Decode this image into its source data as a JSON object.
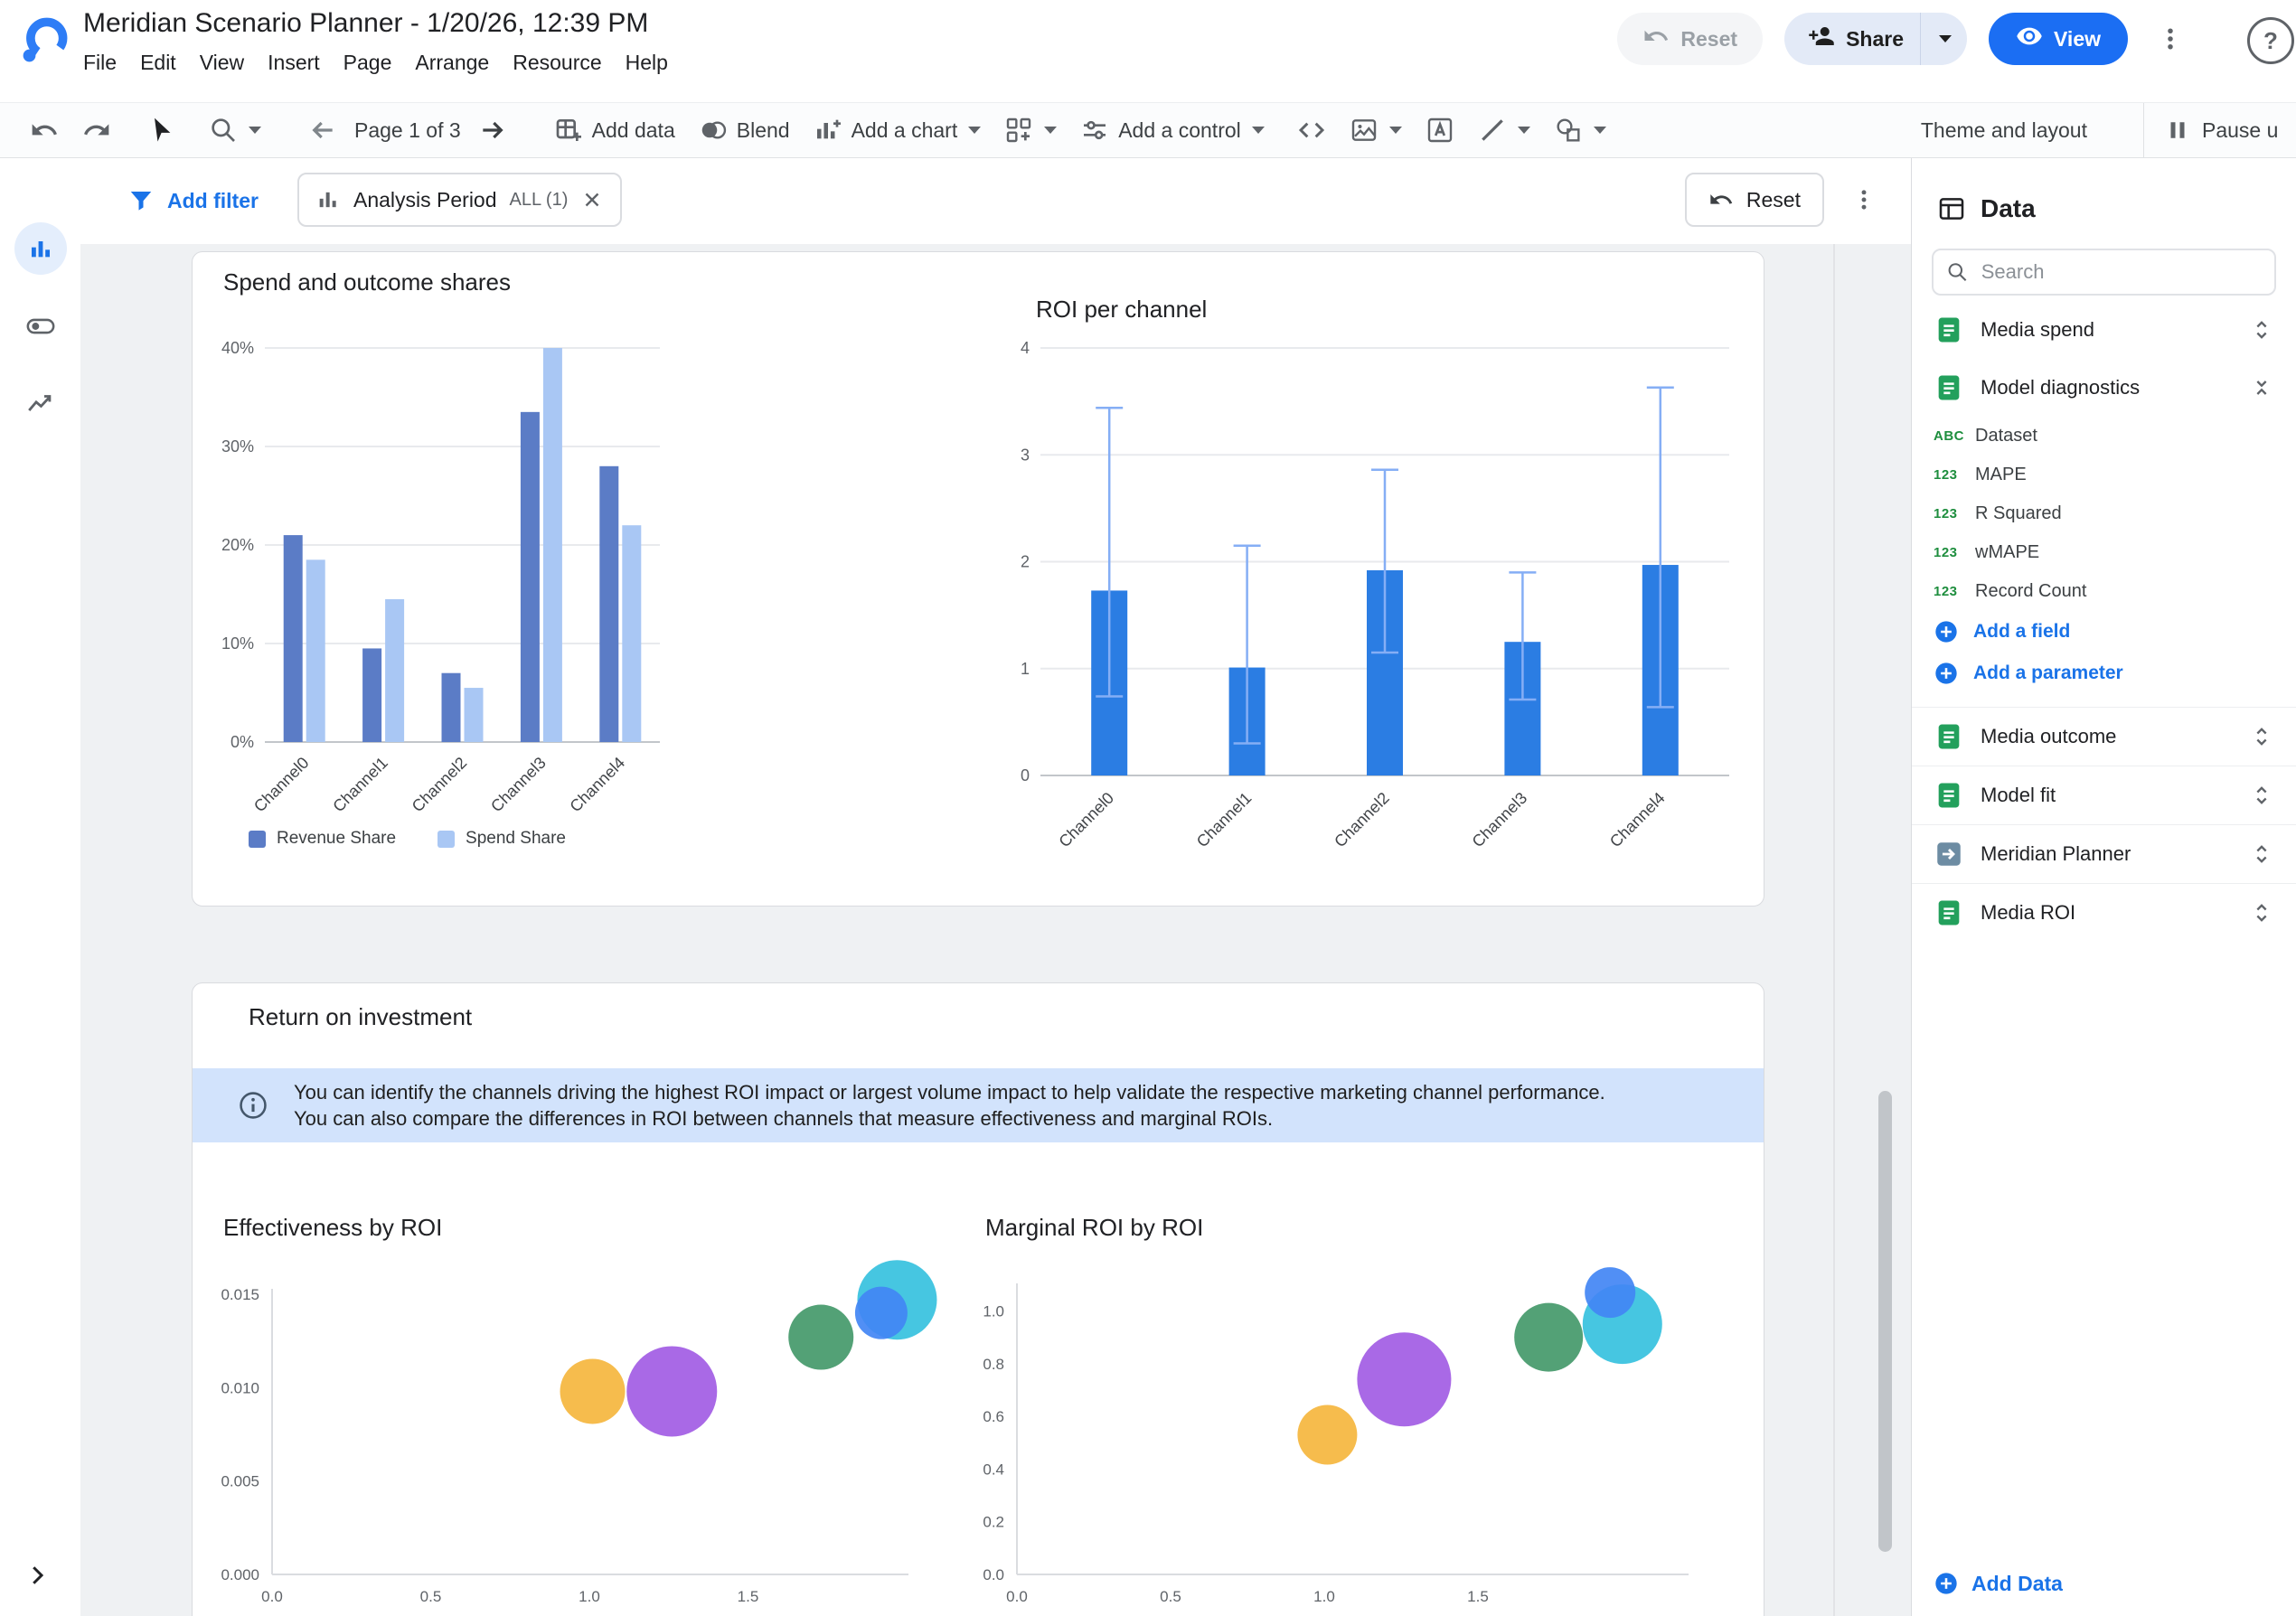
{
  "header": {
    "title": "Meridian Scenario Planner - 1/20/26, 12:39 PM",
    "menus": [
      "File",
      "Edit",
      "View",
      "Insert",
      "Page",
      "Arrange",
      "Resource",
      "Help"
    ],
    "reset_label": "Reset",
    "share_label": "Share",
    "view_label": "View"
  },
  "toolbar": {
    "page_label": "Page 1 of 3",
    "add_data_label": "Add data",
    "blend_label": "Blend",
    "add_chart_label": "Add a chart",
    "add_control_label": "Add a control",
    "theme_layout_label": "Theme and layout",
    "pause_label": "Pause u"
  },
  "filter_bar": {
    "add_filter_label": "Add filter",
    "chip_title": "Analysis Period",
    "chip_value": "ALL (1)",
    "reset_label": "Reset"
  },
  "report": {
    "section_title": "Return on investment",
    "info_banner": "You can identify the channels driving the highest ROI impact or largest volume impact to help validate the respective marketing channel performance. You can also compare the differences in ROI between channels that measure effectiveness and marginal ROIs."
  },
  "data_panel": {
    "title": "Data",
    "search_placeholder": "Search",
    "sources": [
      {
        "name": "Media spend",
        "icon": "sheet"
      },
      {
        "name": "Model diagnostics",
        "icon": "sheet"
      },
      {
        "name": "Media outcome",
        "icon": "sheet"
      },
      {
        "name": "Model fit",
        "icon": "sheet"
      },
      {
        "name": "Meridian Planner",
        "icon": "connector"
      },
      {
        "name": "Media ROI",
        "icon": "sheet"
      }
    ],
    "fields": [
      {
        "badge": "ABC",
        "name": "Dataset"
      },
      {
        "badge": "123",
        "name": "MAPE"
      },
      {
        "badge": "123",
        "name": "R Squared"
      },
      {
        "badge": "123",
        "name": "wMAPE"
      },
      {
        "badge": "123",
        "name": "Record Count"
      }
    ],
    "add_field_label": "Add a field",
    "add_parameter_label": "Add a parameter",
    "add_data_label": "Add Data"
  },
  "colors": {
    "accent": "#1a73e8",
    "banner_bg": "#d2e3fc",
    "canvas_bg": "#eff1f3"
  },
  "chart_data": [
    {
      "type": "bar",
      "title": "Spend and outcome shares",
      "categories": [
        "Channel0",
        "Channel1",
        "Channel2",
        "Channel3",
        "Channel4"
      ],
      "series": [
        {
          "name": "Revenue Share",
          "color": "#5b7cc6",
          "values": [
            21,
            9.5,
            7,
            33.5,
            28
          ]
        },
        {
          "name": "Spend Share",
          "color": "#a9c7f4",
          "values": [
            18.5,
            14.5,
            5.5,
            40,
            22
          ]
        }
      ],
      "ylim": [
        0,
        40
      ],
      "yticks": [
        0,
        10,
        20,
        30,
        40
      ],
      "ytick_labels": [
        "0%",
        "10%",
        "20%",
        "30%",
        "40%"
      ],
      "grid": true,
      "legend_position": "bottom"
    },
    {
      "type": "bar",
      "title": "ROI per channel",
      "categories": [
        "Channel0",
        "Channel1",
        "Channel2",
        "Channel3",
        "Channel4"
      ],
      "values": [
        1.73,
        1.01,
        1.92,
        1.25,
        1.97
      ],
      "error_low": [
        0.74,
        0.3,
        1.15,
        0.71,
        0.64
      ],
      "error_high": [
        3.44,
        2.15,
        2.86,
        1.9,
        3.63
      ],
      "bar_color": "#2b7de3",
      "error_color": "#85aef5",
      "ylim": [
        0,
        4
      ],
      "yticks": [
        0,
        1,
        2,
        3,
        4
      ],
      "ytick_labels": [
        "0",
        "1",
        "2",
        "3",
        "4"
      ],
      "grid": true
    },
    {
      "type": "scatter",
      "title": "Effectiveness by ROI",
      "xlim": [
        0,
        2.05
      ],
      "ylim": [
        0,
        0.0155
      ],
      "xticks": [
        0,
        0.5,
        1.0,
        1.5
      ],
      "xtick_labels": [
        "0.0",
        "0.5",
        "1.0",
        "1.5"
      ],
      "yticks": [
        0,
        0.005,
        0.01,
        0.015
      ],
      "ytick_labels": [
        "0.000",
        "0.005",
        "0.010",
        "0.015"
      ],
      "points": [
        {
          "x": 1.01,
          "y": 0.0098,
          "r": 36,
          "color": "#f5b63e"
        },
        {
          "x": 1.26,
          "y": 0.0098,
          "r": 50,
          "color": "#a25ce4"
        },
        {
          "x": 1.73,
          "y": 0.0127,
          "r": 36,
          "color": "#44996a"
        },
        {
          "x": 1.97,
          "y": 0.0147,
          "r": 44,
          "color": "#36c1de"
        },
        {
          "x": 1.92,
          "y": 0.014,
          "r": 29,
          "color": "#4285f4"
        }
      ]
    },
    {
      "type": "scatter",
      "title": "Marginal ROI by ROI",
      "xlim": [
        0,
        2.05
      ],
      "ylim": [
        0,
        1.15
      ],
      "xticks": [
        0,
        0.5,
        1.0,
        1.5
      ],
      "xtick_labels": [
        "0.0",
        "0.5",
        "1.0",
        "1.5"
      ],
      "yticks": [
        0,
        0.2,
        0.4,
        0.6,
        0.8,
        1.0
      ],
      "ytick_labels": [
        "0.0",
        "0.2",
        "0.4",
        "0.6",
        "0.8",
        "1.0"
      ],
      "points": [
        {
          "x": 1.01,
          "y": 0.53,
          "r": 33,
          "color": "#f5b63e"
        },
        {
          "x": 1.26,
          "y": 0.74,
          "r": 52,
          "color": "#a25ce4"
        },
        {
          "x": 1.73,
          "y": 0.9,
          "r": 38,
          "color": "#44996a"
        },
        {
          "x": 1.97,
          "y": 0.95,
          "r": 44,
          "color": "#36c1de"
        },
        {
          "x": 1.93,
          "y": 1.07,
          "r": 28,
          "color": "#4285f4"
        }
      ]
    }
  ]
}
